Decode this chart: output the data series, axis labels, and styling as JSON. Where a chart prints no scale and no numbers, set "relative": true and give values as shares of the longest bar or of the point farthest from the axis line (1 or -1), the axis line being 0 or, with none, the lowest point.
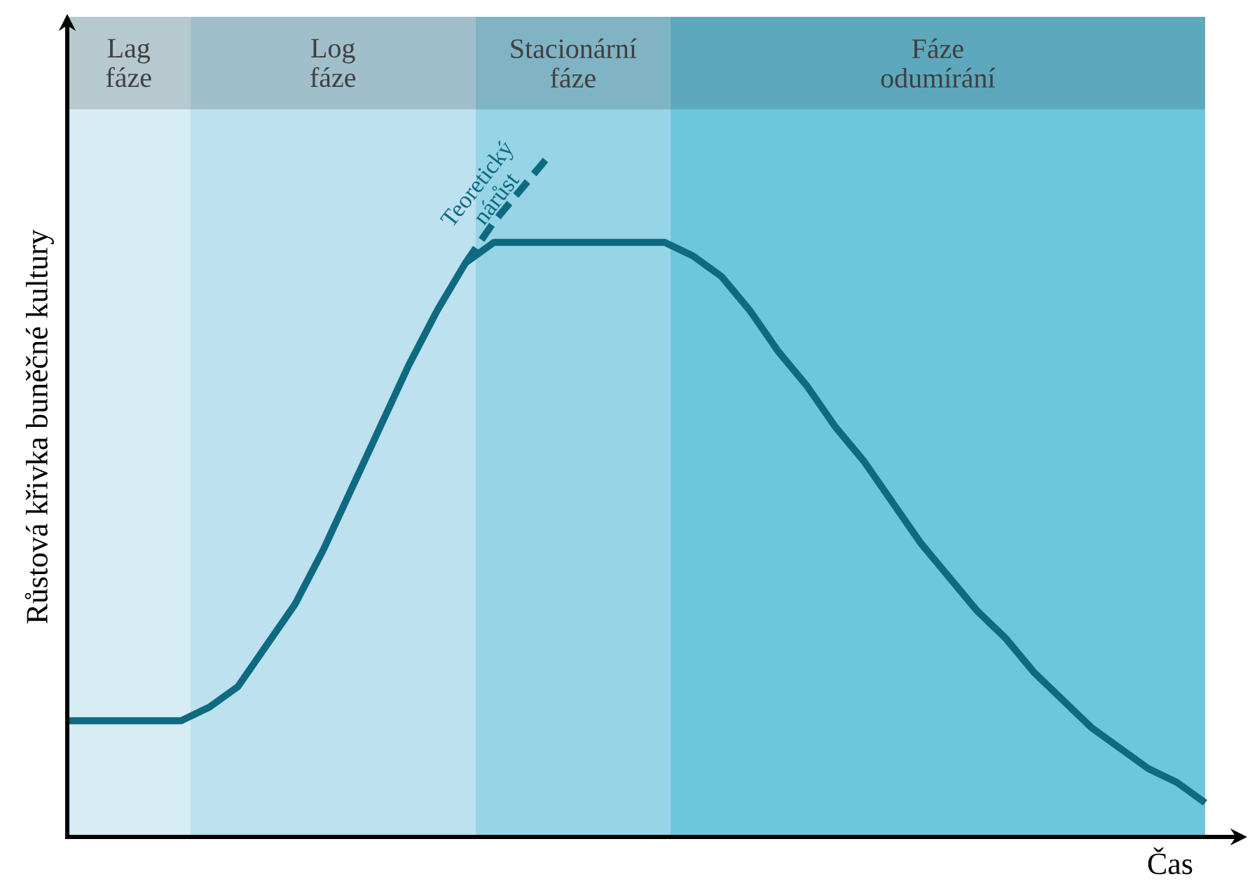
{
  "chart_data": {
    "type": "line",
    "relative": true,
    "xlabel": "Čas",
    "ylabel": "Růstová křivka buněčné kultury",
    "categories": [
      null,
      null,
      null,
      null,
      null,
      null,
      null,
      null,
      null,
      null,
      null,
      null,
      null,
      null,
      null,
      null,
      null,
      null,
      null,
      null,
      null,
      null,
      null,
      null,
      null,
      null,
      null,
      null,
      null,
      null,
      null,
      null,
      null,
      null,
      null,
      null,
      null,
      null,
      null,
      null,
      null
    ],
    "line_style": "solid",
    "series": [
      {
        "color": "#0e6a80",
        "values": [
          0.17,
          0.17,
          0.17,
          0.17,
          0.17,
          0.19,
          0.22,
          0.28,
          0.34,
          0.42,
          0.51,
          0.6,
          0.69,
          0.77,
          0.84,
          0.87,
          0.87,
          0.87,
          0.87,
          0.87,
          0.87,
          0.87,
          0.85,
          0.82,
          0.77,
          0.71,
          0.66,
          0.6,
          0.55,
          0.49,
          0.43,
          0.38,
          0.33,
          0.29,
          0.24,
          0.2,
          0.16,
          0.13,
          0.1,
          0.08,
          0.05
        ]
      },
      {
        "name": "Teoretický nárůst",
        "color": "#0e6a80",
        "line_style": "dashed",
        "values": [
          null,
          null,
          null,
          null,
          null,
          null,
          null,
          null,
          null,
          null,
          null,
          null,
          null,
          null,
          0.84,
          0.9,
          0.95,
          1.0,
          null,
          null,
          null,
          null,
          null,
          null,
          null,
          null,
          null,
          null,
          null,
          null,
          null,
          null,
          null,
          null,
          null,
          null,
          null,
          null,
          null,
          null,
          null
        ]
      }
    ],
    "annotations": [
      "Lag fáze",
      "Log fáze",
      "Stacionární fáze",
      "Fáze odumírání"
    ]
  }
}
